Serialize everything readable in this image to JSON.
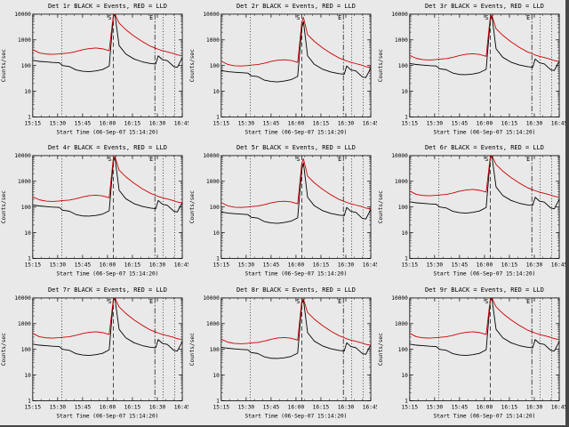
{
  "window": {
    "bg": "#e9e9e9",
    "edge": "#464646"
  },
  "colors": {
    "events": "#000000",
    "lld": "#cc0000",
    "axis": "#000000"
  },
  "axes": {
    "xlabel": "Start Time (06-Sep-07 15:14:20)",
    "ylabel": "Counts/sec",
    "xticks": [
      "15:15",
      "15:30",
      "15:45",
      "16:00",
      "16:15",
      "16:30",
      "16:45"
    ],
    "xlim_minutes": [
      0,
      90
    ],
    "ylim": [
      1,
      10000
    ],
    "yticks": [
      "1",
      "10",
      "100",
      "1000",
      "10000"
    ],
    "yscale": "log",
    "grid": false,
    "x_minutes": [
      0,
      4,
      8,
      12,
      16,
      18,
      22,
      26,
      30,
      34,
      38,
      42,
      46,
      48.5,
      49.5,
      52,
      56,
      61,
      66,
      71,
      74,
      75.5,
      78,
      81,
      85,
      87,
      90
    ]
  },
  "markers": {
    "vlines": [
      {
        "x_min": 17.5,
        "style": "dotted",
        "label": ""
      },
      {
        "x_min": 48.5,
        "style": "dashed",
        "label": "S"
      },
      {
        "x_min": 73.5,
        "style": "dashdot",
        "label": "E"
      },
      {
        "x_min": 78.5,
        "style": "dotted",
        "label": ""
      },
      {
        "x_min": 85.5,
        "style": "dotted",
        "label": ""
      }
    ]
  },
  "chart_data": [
    {
      "type": "line",
      "title": "Det 1r BLACK = Events, RED = LLD",
      "series": [
        {
          "name": "Events",
          "color": "#000000",
          "values": [
            160,
            145,
            138,
            132,
            128,
            100,
            92,
            68,
            60,
            58,
            62,
            70,
            95,
            8000,
            9500,
            600,
            280,
            180,
            140,
            120,
            115,
            240,
            170,
            155,
            90,
            85,
            200
          ]
        },
        {
          "name": "LLD",
          "color": "#cc0000",
          "values": [
            420,
            310,
            280,
            275,
            285,
            295,
            310,
            350,
            410,
            460,
            480,
            450,
            380,
            9000,
            9800,
            4500,
            2500,
            1400,
            850,
            560,
            470,
            430,
            380,
            340,
            290,
            260,
            240
          ]
        }
      ]
    },
    {
      "type": "line",
      "title": "Det 2r BLACK = Events, RED = LLD",
      "series": [
        {
          "name": "Events",
          "color": "#000000",
          "values": [
            64,
            58,
            55,
            53,
            51,
            40,
            37,
            27,
            24,
            23,
            25,
            28,
            38,
            3000,
            5200,
            240,
            112,
            72,
            56,
            48,
            46,
            96,
            68,
            62,
            36,
            34,
            80
          ]
        },
        {
          "name": "LLD",
          "color": "#cc0000",
          "values": [
            150,
            110,
            98,
            96,
            100,
            104,
            109,
            123,
            144,
            161,
            168,
            158,
            133,
            5000,
            7500,
            1600,
            875,
            490,
            300,
            196,
            165,
            151,
            133,
            119,
            102,
            91,
            84
          ]
        }
      ]
    },
    {
      "type": "line",
      "title": "Det 3r BLACK = Events, RED = LLD",
      "series": [
        {
          "name": "Events",
          "color": "#000000",
          "values": [
            120,
            110,
            104,
            99,
            96,
            75,
            69,
            51,
            45,
            44,
            47,
            53,
            71,
            6000,
            8500,
            450,
            210,
            135,
            105,
            90,
            86,
            180,
            128,
            116,
            68,
            64,
            150
          ]
        },
        {
          "name": "LLD",
          "color": "#cc0000",
          "values": [
            250,
            190,
            170,
            165,
            172,
            178,
            186,
            210,
            246,
            276,
            288,
            270,
            228,
            8000,
            9200,
            2700,
            1500,
            840,
            510,
            336,
            282,
            258,
            228,
            204,
            174,
            156,
            144
          ]
        }
      ]
    },
    {
      "type": "line",
      "title": "Det 4r BLACK = Events, RED = LLD",
      "series": [
        {
          "name": "Events",
          "color": "#000000",
          "values": [
            120,
            110,
            104,
            99,
            96,
            75,
            69,
            51,
            45,
            44,
            47,
            53,
            71,
            6000,
            8500,
            450,
            210,
            135,
            105,
            90,
            86,
            180,
            128,
            116,
            68,
            64,
            150
          ]
        },
        {
          "name": "LLD",
          "color": "#cc0000",
          "values": [
            250,
            190,
            170,
            165,
            172,
            178,
            186,
            210,
            246,
            276,
            288,
            270,
            228,
            8000,
            9200,
            2700,
            1500,
            840,
            510,
            336,
            282,
            258,
            228,
            204,
            174,
            156,
            144
          ]
        }
      ]
    },
    {
      "type": "line",
      "title": "Det 5r BLACK = Events, RED = LLD",
      "series": [
        {
          "name": "Events",
          "color": "#000000",
          "values": [
            64,
            58,
            55,
            53,
            51,
            40,
            37,
            27,
            24,
            23,
            25,
            28,
            38,
            3000,
            5200,
            240,
            112,
            72,
            56,
            48,
            46,
            96,
            68,
            62,
            36,
            34,
            80
          ]
        },
        {
          "name": "LLD",
          "color": "#cc0000",
          "values": [
            150,
            110,
            98,
            96,
            100,
            104,
            109,
            123,
            144,
            161,
            168,
            158,
            133,
            5000,
            7500,
            1600,
            875,
            490,
            300,
            196,
            165,
            151,
            133,
            119,
            102,
            91,
            84
          ]
        }
      ]
    },
    {
      "type": "line",
      "title": "Det 6r BLACK = Events, RED = LLD",
      "series": [
        {
          "name": "Events",
          "color": "#000000",
          "values": [
            160,
            145,
            138,
            132,
            128,
            100,
            92,
            68,
            60,
            58,
            62,
            70,
            95,
            8000,
            9500,
            600,
            280,
            180,
            140,
            120,
            115,
            240,
            170,
            155,
            90,
            85,
            200
          ]
        },
        {
          "name": "LLD",
          "color": "#cc0000",
          "values": [
            420,
            310,
            280,
            275,
            285,
            295,
            310,
            350,
            410,
            460,
            480,
            450,
            380,
            9000,
            9800,
            4500,
            2500,
            1400,
            850,
            560,
            470,
            430,
            380,
            340,
            290,
            260,
            240
          ]
        }
      ]
    },
    {
      "type": "line",
      "title": "Det 7r BLACK = Events, RED = LLD",
      "series": [
        {
          "name": "Events",
          "color": "#000000",
          "values": [
            160,
            145,
            138,
            132,
            128,
            100,
            92,
            68,
            60,
            58,
            62,
            70,
            95,
            8000,
            9500,
            600,
            280,
            180,
            140,
            120,
            115,
            240,
            170,
            155,
            90,
            85,
            200
          ]
        },
        {
          "name": "LLD",
          "color": "#cc0000",
          "values": [
            420,
            310,
            280,
            275,
            285,
            295,
            310,
            350,
            410,
            460,
            480,
            450,
            380,
            9000,
            9800,
            4500,
            2500,
            1400,
            850,
            560,
            470,
            430,
            380,
            340,
            290,
            260,
            240
          ]
        }
      ]
    },
    {
      "type": "line",
      "title": "Det 8r BLACK = Events, RED = LLD",
      "series": [
        {
          "name": "Events",
          "color": "#000000",
          "values": [
            120,
            110,
            104,
            99,
            96,
            75,
            69,
            51,
            45,
            44,
            47,
            53,
            71,
            6000,
            8500,
            450,
            210,
            135,
            105,
            90,
            86,
            180,
            128,
            116,
            68,
            64,
            150
          ]
        },
        {
          "name": "LLD",
          "color": "#cc0000",
          "values": [
            250,
            190,
            170,
            165,
            172,
            178,
            186,
            210,
            246,
            276,
            288,
            270,
            228,
            8000,
            9200,
            2700,
            1500,
            840,
            510,
            336,
            282,
            258,
            228,
            204,
            174,
            156,
            144
          ]
        }
      ]
    },
    {
      "type": "line",
      "title": "Det 9r BLACK = Events, RED = LLD",
      "series": [
        {
          "name": "Events",
          "color": "#000000",
          "values": [
            160,
            145,
            138,
            132,
            128,
            100,
            92,
            68,
            60,
            58,
            62,
            70,
            95,
            8000,
            9500,
            600,
            280,
            180,
            140,
            120,
            115,
            240,
            170,
            155,
            90,
            85,
            200
          ]
        },
        {
          "name": "LLD",
          "color": "#cc0000",
          "values": [
            420,
            310,
            280,
            275,
            285,
            295,
            310,
            350,
            410,
            460,
            480,
            450,
            380,
            9000,
            9800,
            4500,
            2500,
            1400,
            850,
            560,
            470,
            430,
            380,
            340,
            290,
            260,
            240
          ]
        }
      ]
    }
  ]
}
